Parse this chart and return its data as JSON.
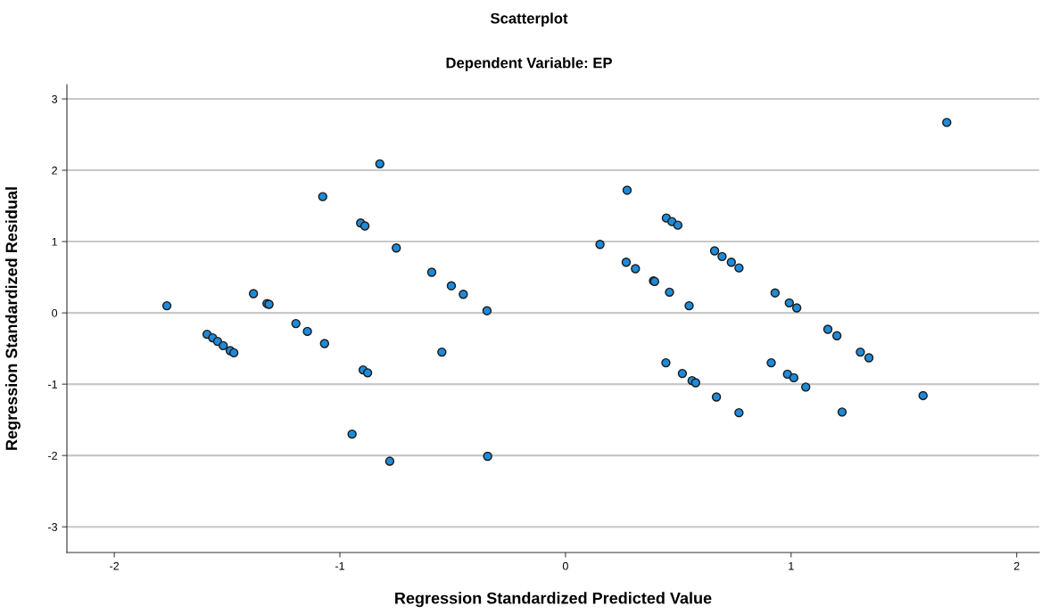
{
  "chart_data": {
    "type": "scatter",
    "title": "Scatterplot",
    "subtitle": "Dependent Variable: EP",
    "xlabel": "Regression Standardized Predicted Value",
    "ylabel": "Regression Standardized Residual",
    "xlim": [
      -2.21,
      2.1
    ],
    "ylim": [
      -3.36,
      3.2
    ],
    "xticks": [
      -2,
      -1,
      0,
      1,
      2
    ],
    "yticks": [
      -3,
      -2,
      -1,
      0,
      1,
      2,
      3
    ],
    "grid": "y",
    "marker": "circle",
    "series": [
      {
        "color": "#1f8ad8",
        "x": [
          -1.767,
          -1.589,
          -1.564,
          -1.542,
          -1.517,
          -1.486,
          -1.47,
          -1.383,
          -1.323,
          -1.314,
          -1.195,
          -1.144,
          -1.068,
          -1.076,
          -0.908,
          -0.889,
          -0.823,
          -0.897,
          -0.877,
          -0.946,
          -0.779,
          -0.75,
          -0.593,
          -0.506,
          -0.453,
          -0.348,
          -0.548,
          -0.345,
          0.153,
          0.273,
          0.269,
          0.31,
          0.39,
          0.395,
          0.447,
          0.472,
          0.498,
          0.461,
          0.548,
          0.661,
          0.694,
          0.735,
          0.769,
          0.929,
          0.992,
          1.025,
          0.445,
          0.518,
          0.561,
          0.577,
          0.669,
          0.769,
          0.912,
          0.984,
          1.012,
          1.065,
          1.163,
          1.203,
          1.307,
          1.345,
          1.226,
          1.585,
          1.69
        ],
        "values": [
          0.1,
          -0.3,
          -0.35,
          -0.4,
          -0.46,
          -0.53,
          -0.56,
          0.27,
          0.13,
          0.12,
          -0.15,
          -0.26,
          -0.43,
          1.63,
          1.26,
          1.22,
          2.09,
          -0.8,
          -0.84,
          -1.7,
          -2.08,
          0.91,
          0.57,
          0.38,
          0.26,
          0.03,
          -0.55,
          -2.01,
          0.96,
          1.72,
          0.71,
          0.62,
          0.45,
          0.44,
          1.33,
          1.28,
          1.23,
          0.29,
          0.1,
          0.87,
          0.79,
          0.71,
          0.63,
          0.28,
          0.14,
          0.07,
          -0.7,
          -0.85,
          -0.95,
          -0.98,
          -1.18,
          -1.4,
          -0.7,
          -0.86,
          -0.91,
          -1.04,
          -0.23,
          -0.32,
          -0.55,
          -0.63,
          -1.39,
          -1.16,
          2.67
        ]
      }
    ]
  }
}
